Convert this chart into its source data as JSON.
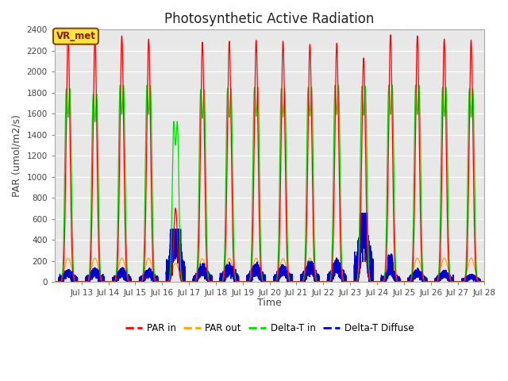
{
  "title": "Photosynthetic Active Radiation",
  "ylabel": "PAR (umol/m2/s)",
  "xlabel": "Time",
  "annotation_label": "VR_met",
  "ylim": [
    0,
    2400
  ],
  "xlim_start": 12.0,
  "xlim_end": 28.0,
  "xtick_positions": [
    13,
    14,
    15,
    16,
    17,
    18,
    19,
    20,
    21,
    22,
    23,
    24,
    25,
    26,
    27,
    28
  ],
  "xtick_labels": [
    "Jul 13",
    "Jul 14",
    "Jul 15",
    "Jul 16",
    "Jul 17",
    "Jul 18",
    "Jul 19",
    "Jul 20",
    "Jul 21",
    "Jul 22",
    "Jul 23",
    "Jul 24",
    "Jul 25",
    "Jul 26",
    "Jul 27",
    "Jul 28"
  ],
  "ytick_positions": [
    0,
    200,
    400,
    600,
    800,
    1000,
    1200,
    1400,
    1600,
    1800,
    2000,
    2200,
    2400
  ],
  "colors": {
    "PAR_in": "#ff0000",
    "PAR_out": "#ffa500",
    "Delta_T_in": "#00dd00",
    "Delta_T_Diffuse": "#0000cc"
  },
  "legend": [
    "PAR in",
    "PAR out",
    "Delta-T in",
    "Delta-T Diffuse"
  ],
  "bg_color": "#e8e8e8",
  "grid_color": "#ffffff",
  "title_fontsize": 12,
  "label_fontsize": 9
}
